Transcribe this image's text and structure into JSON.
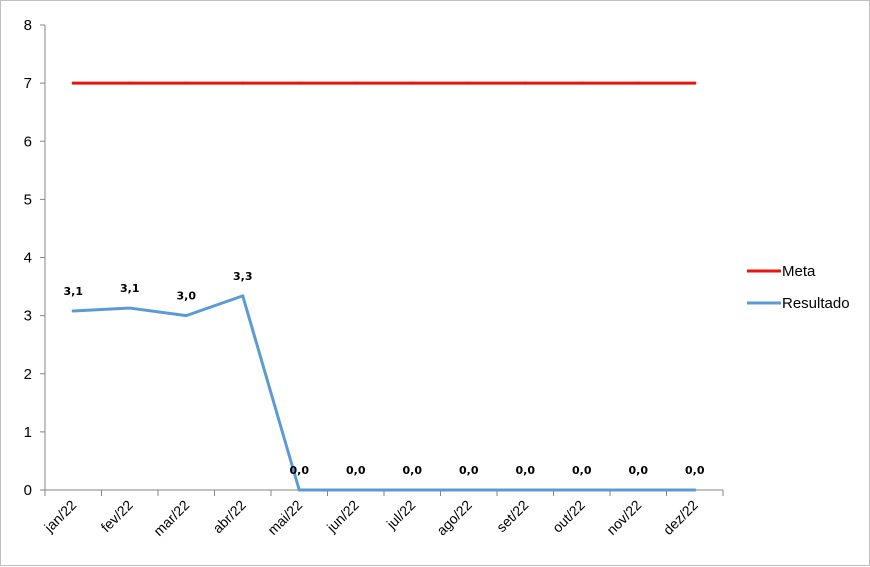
{
  "chart_data": {
    "type": "line",
    "categories": [
      "jan/22",
      "fev/22",
      "mar/22",
      "abr/22",
      "mai/22",
      "jun/22",
      "jul/22",
      "ago/22",
      "set/22",
      "out/22",
      "nov/22",
      "dez/22"
    ],
    "series": [
      {
        "name": "Meta",
        "color": "#e8140f",
        "values": [
          7,
          7,
          7,
          7,
          7,
          7,
          7,
          7,
          7,
          7,
          7,
          7
        ],
        "data_labels": []
      },
      {
        "name": "Resultado",
        "color": "#5b9bd5",
        "values": [
          3.08,
          3.13,
          3.0,
          3.34,
          0,
          0,
          0,
          0,
          0,
          0,
          0,
          0
        ],
        "data_labels": [
          "3,1",
          "3,1",
          "3,0",
          "3,3",
          "0,0",
          "0,0",
          "0,0",
          "0,0",
          "0,0",
          "0,0",
          "0,0",
          "0,0"
        ]
      }
    ],
    "y_ticks": [
      "0",
      "1",
      "2",
      "3",
      "4",
      "5",
      "6",
      "7",
      "8"
    ],
    "ylim": [
      0,
      8
    ],
    "title": "",
    "xlabel": "",
    "ylabel": "",
    "legend_position": "right",
    "grid": false
  }
}
